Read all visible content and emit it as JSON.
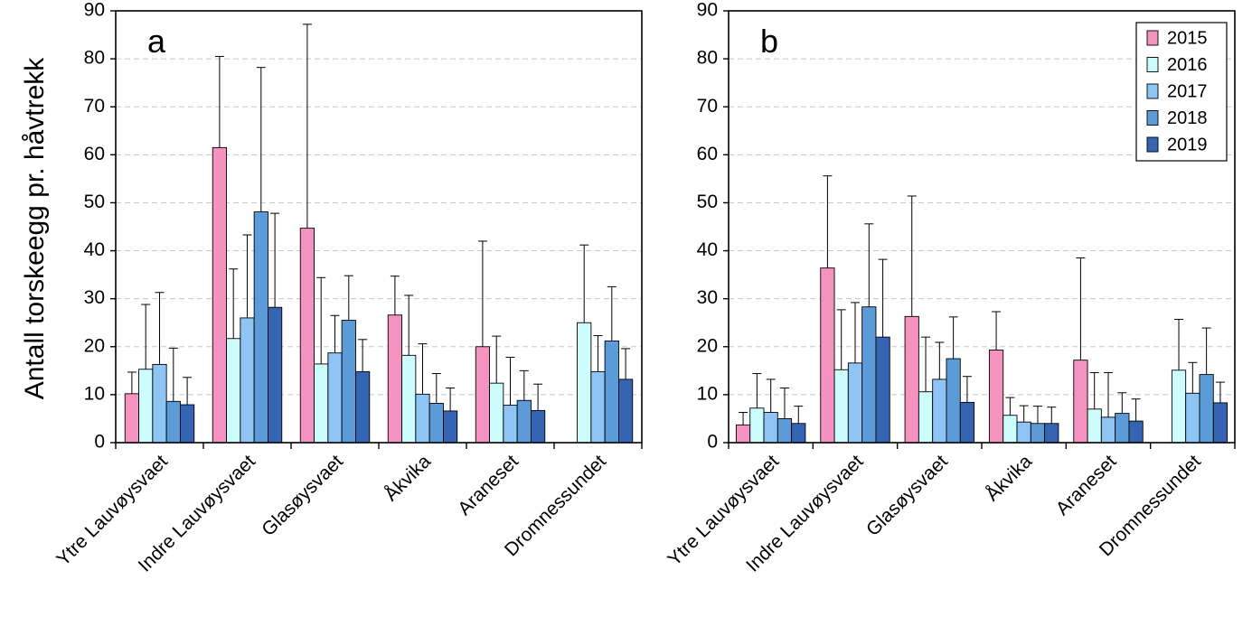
{
  "ylabel": "Antall torskeegg pr. håvtrekk",
  "series_names": [
    "2015",
    "2016",
    "2017",
    "2018",
    "2019"
  ],
  "colors": [
    "#f593c0",
    "#ccfcfc",
    "#8ec5f4",
    "#5b9bd7",
    "#3565b2"
  ],
  "chart_data": [
    {
      "type": "bar",
      "panel_label": "a",
      "categories": [
        "Ytre Lauvøysvaet",
        "Indre Lauvøysvaet",
        "Glasøysvaet",
        "Åkvika",
        "Araneset",
        "Dromnessundet"
      ],
      "ylim": [
        0,
        90
      ],
      "yticks": [
        0,
        10,
        20,
        30,
        40,
        50,
        60,
        70,
        80,
        90
      ],
      "grid": true,
      "series": [
        {
          "name": "2015",
          "values": [
            10.2,
            61.5,
            44.7,
            26.6,
            20.0,
            null
          ],
          "errors": [
            4.5,
            19.0,
            42.5,
            8.1,
            22.0,
            null
          ]
        },
        {
          "name": "2016",
          "values": [
            15.3,
            21.7,
            16.4,
            18.2,
            12.4,
            25.0
          ],
          "errors": [
            13.5,
            14.5,
            18.0,
            12.5,
            9.8,
            16.2
          ]
        },
        {
          "name": "2017",
          "values": [
            16.3,
            26.0,
            18.7,
            10.1,
            7.8,
            14.8
          ],
          "errors": [
            15.0,
            17.3,
            7.8,
            10.5,
            10.0,
            7.5
          ]
        },
        {
          "name": "2018",
          "values": [
            8.6,
            48.1,
            25.5,
            8.2,
            8.8,
            21.2
          ],
          "errors": [
            11.1,
            30.1,
            9.3,
            6.2,
            6.2,
            11.3
          ]
        },
        {
          "name": "2019",
          "values": [
            7.9,
            28.2,
            14.8,
            6.6,
            6.7,
            13.2
          ],
          "errors": [
            5.7,
            19.6,
            6.7,
            4.8,
            5.5,
            6.4
          ]
        }
      ]
    },
    {
      "type": "bar",
      "panel_label": "b",
      "categories": [
        "Ytre Lauvøysvaet",
        "Indre Lauvøysvaet",
        "Glasøysvaet",
        "Åkvika",
        "Araneset",
        "Dromnessundet"
      ],
      "ylim": [
        0,
        90
      ],
      "yticks": [
        0,
        10,
        20,
        30,
        40,
        50,
        60,
        70,
        80,
        90
      ],
      "grid": true,
      "legend_position": "top-right",
      "series": [
        {
          "name": "2015",
          "values": [
            3.7,
            36.4,
            26.3,
            19.3,
            17.2,
            null
          ],
          "errors": [
            2.6,
            19.2,
            25.1,
            8.0,
            21.3,
            null
          ]
        },
        {
          "name": "2016",
          "values": [
            7.2,
            15.2,
            10.6,
            5.7,
            7.0,
            15.1
          ],
          "errors": [
            7.2,
            12.5,
            11.4,
            3.7,
            7.6,
            10.6
          ]
        },
        {
          "name": "2017",
          "values": [
            6.3,
            16.6,
            13.2,
            4.3,
            5.3,
            10.3
          ],
          "errors": [
            6.9,
            12.6,
            7.7,
            3.4,
            9.3,
            6.4
          ]
        },
        {
          "name": "2018",
          "values": [
            5.0,
            28.3,
            17.5,
            4.0,
            6.1,
            14.2
          ],
          "errors": [
            6.4,
            17.3,
            8.7,
            3.6,
            4.3,
            9.7
          ]
        },
        {
          "name": "2019",
          "values": [
            4.0,
            22.0,
            8.4,
            4.0,
            4.5,
            8.3
          ],
          "errors": [
            3.6,
            16.2,
            5.4,
            3.4,
            4.6,
            4.3
          ]
        }
      ]
    }
  ]
}
